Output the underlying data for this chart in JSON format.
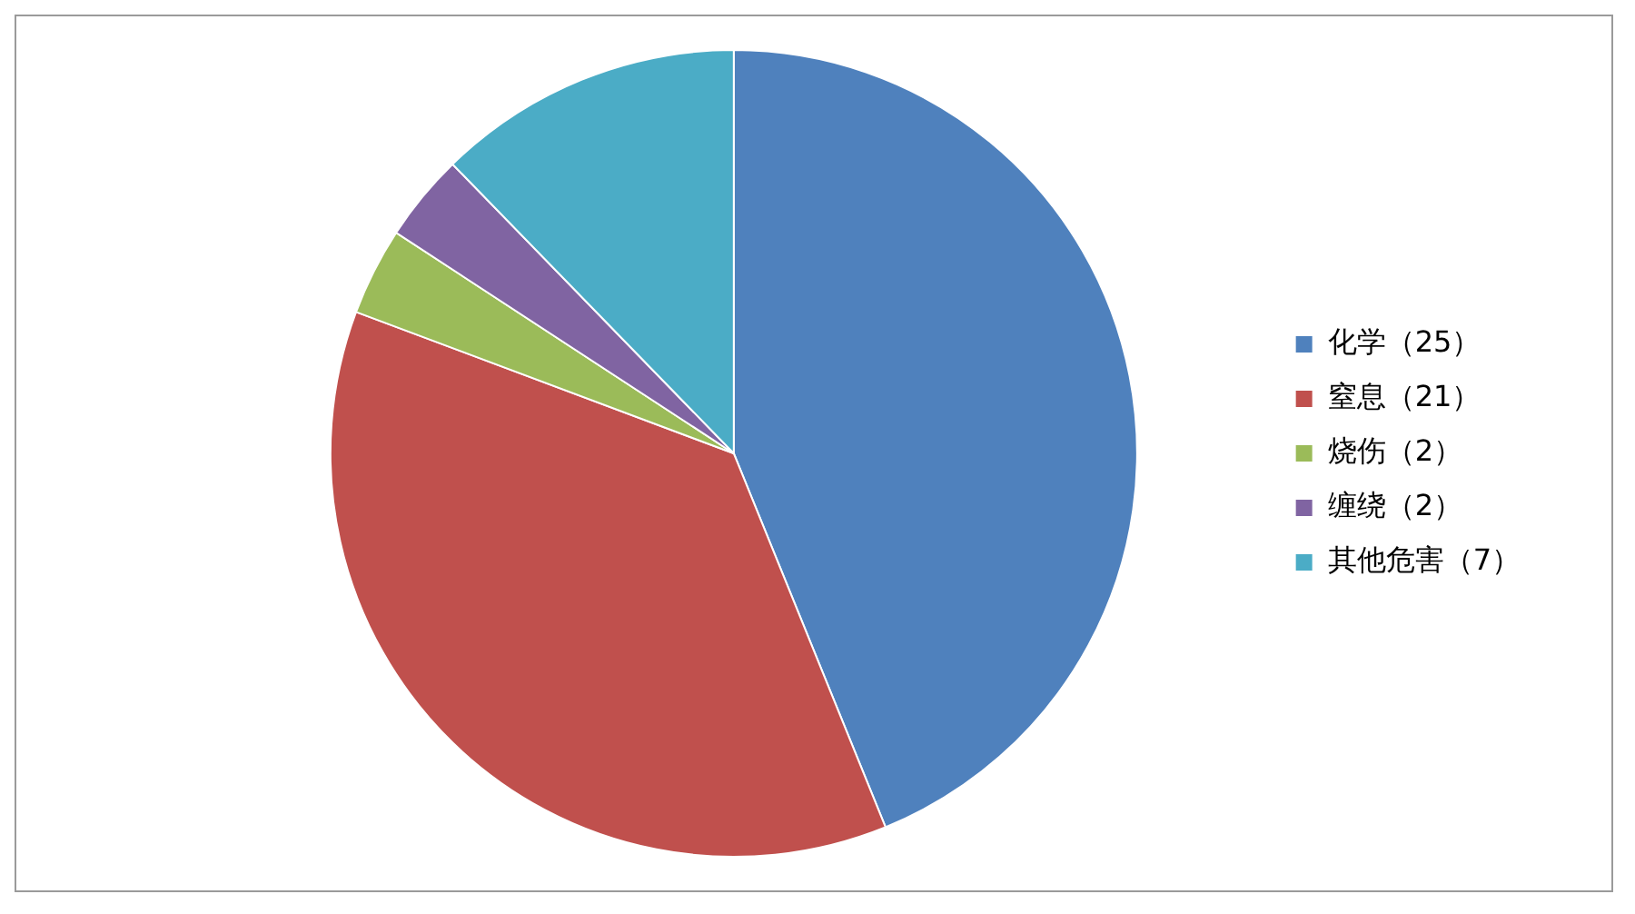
{
  "chart_data": {
    "type": "pie",
    "categories": [
      "化学（25）",
      "窒息（21）",
      "烧伤（2）",
      "缠绕（2）",
      "其他危害（7）"
    ],
    "values": [
      25,
      21,
      2,
      2,
      7
    ],
    "colors": [
      "#4f81bd",
      "#c0504d",
      "#9bbb59",
      "#8064a2",
      "#4bacc6"
    ],
    "legend": "right"
  }
}
